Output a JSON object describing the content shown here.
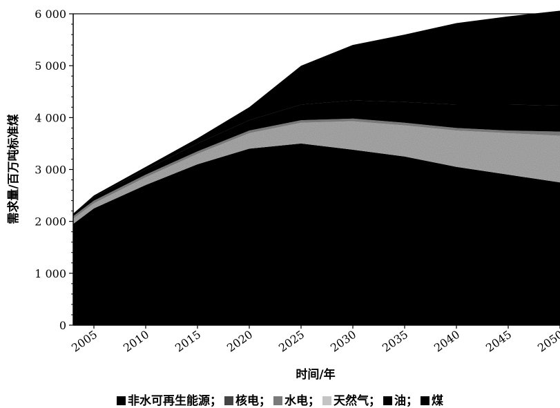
{
  "chart_data": {
    "type": "area",
    "stacked": true,
    "xlabel": "时间/年",
    "ylabel": "需求量/百万吨标准煤",
    "xlim": [
      2003,
      2050
    ],
    "ylim": [
      0,
      6000
    ],
    "x_ticks": [
      2005,
      2010,
      2015,
      2020,
      2025,
      2030,
      2035,
      2040,
      2045,
      2050
    ],
    "y_ticks": [
      0,
      1000,
      2000,
      3000,
      4000,
      5000,
      6000
    ],
    "y_tick_labels": [
      "0",
      "1 000",
      "2 000",
      "3 000",
      "4 000",
      "5 000",
      "6 000"
    ],
    "legend_position": "bottom",
    "x": [
      2003,
      2005,
      2010,
      2015,
      2020,
      2025,
      2030,
      2035,
      2040,
      2045,
      2050
    ],
    "series": [
      {
        "name": "煤",
        "color": "#000000",
        "values": [
          1950,
          2250,
          2700,
          3100,
          3400,
          3500,
          3380,
          3250,
          3050,
          2900,
          2750
        ]
      },
      {
        "name": "油",
        "color": "#050505",
        "values": [
          0,
          0,
          0,
          0,
          0,
          0,
          0,
          0,
          0,
          0,
          0
        ]
      },
      {
        "name": "天然气",
        "color": "#b8b8b8",
        "values": [
          100,
          100,
          150,
          200,
          300,
          400,
          550,
          600,
          700,
          800,
          900
        ]
      },
      {
        "name": "水电",
        "color": "#8c8c8c",
        "values": [
          50,
          50,
          50,
          50,
          50,
          50,
          50,
          50,
          50,
          50,
          80
        ]
      },
      {
        "name": "核电",
        "color": "#111111",
        "values": [
          50,
          70,
          100,
          150,
          200,
          300,
          350,
          400,
          450,
          500,
          500
        ]
      },
      {
        "name": "非水可再生能源",
        "color": "#000000",
        "values": [
          0,
          30,
          50,
          100,
          250,
          750,
          1070,
          1300,
          1570,
          1700,
          1830
        ]
      }
    ],
    "legend": [
      {
        "label": "非水可再生能源；",
        "swatch": "#000000"
      },
      {
        "label": "核电；",
        "swatch": "#444444"
      },
      {
        "label": "水电；",
        "swatch": "#7a7a7a"
      },
      {
        "label": "天然气；",
        "swatch": "#c4c4c4"
      },
      {
        "label": "油；",
        "swatch": "#000000"
      },
      {
        "label": "煤",
        "swatch": "#000000"
      }
    ]
  }
}
